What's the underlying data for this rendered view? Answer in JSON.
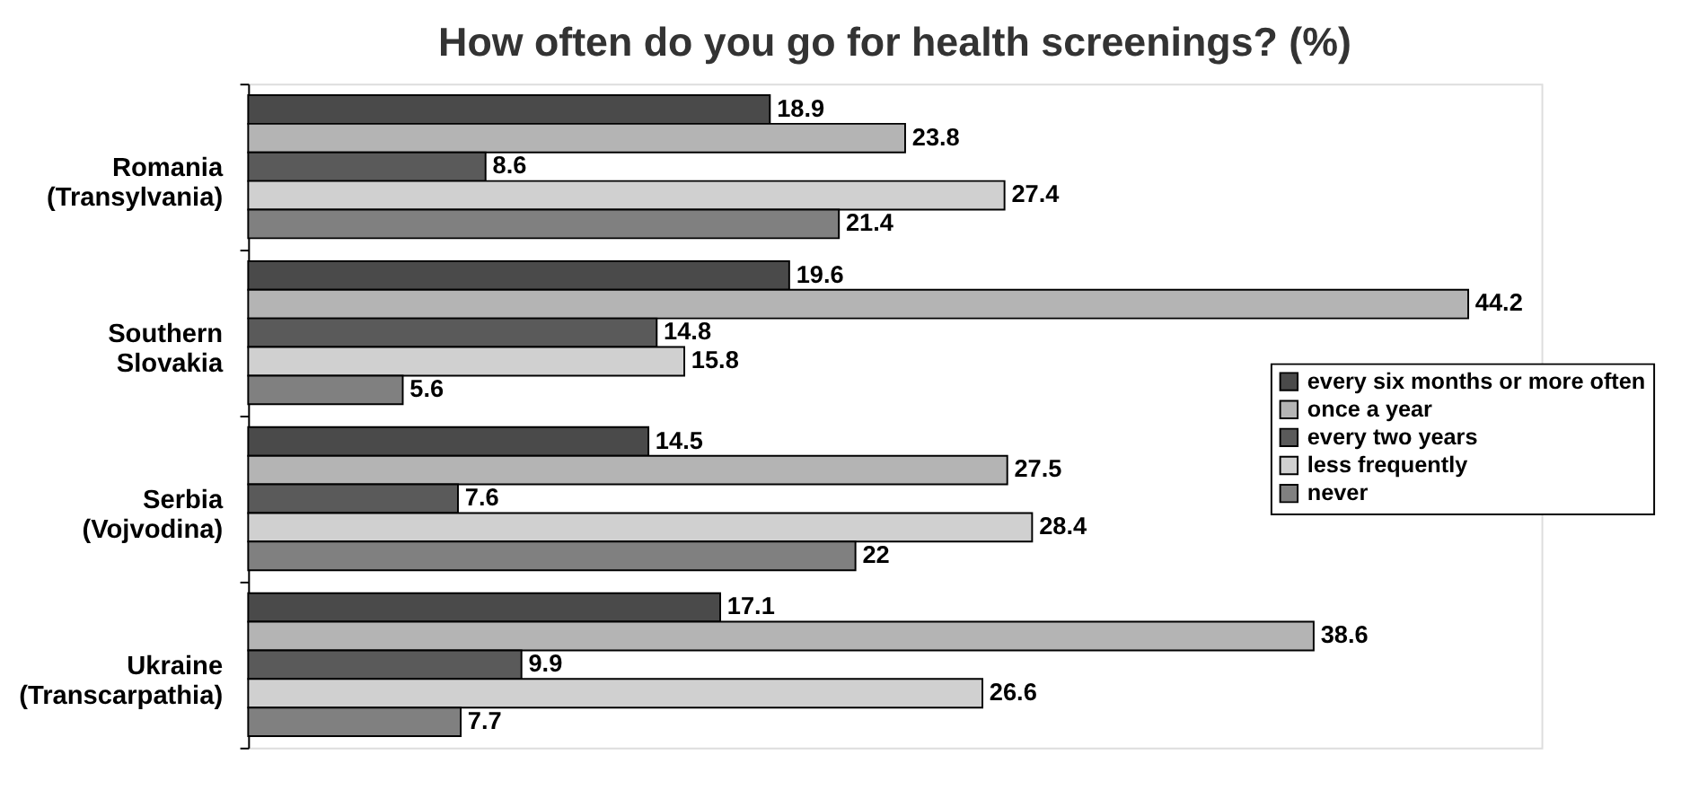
{
  "chart_data": {
    "type": "bar",
    "orientation": "horizontal",
    "title": "How often do you go for health screenings? (%)",
    "categories": [
      "Romania\n(Transylvania)",
      "Southern\nSlovakia",
      "Serbia\n(Vojvodina)",
      "Ukraine\n(Transcarpathia)"
    ],
    "series": [
      {
        "name": "every six months or more often",
        "color": "#4a4a4a",
        "values": [
          18.9,
          19.6,
          14.5,
          17.1
        ]
      },
      {
        "name": "once a year",
        "color": "#b4b4b4",
        "values": [
          23.8,
          44.2,
          27.5,
          38.6
        ]
      },
      {
        "name": "every two years",
        "color": "#5a5a5a",
        "values": [
          8.6,
          14.8,
          7.6,
          9.9
        ]
      },
      {
        "name": "less frequently",
        "color": "#d0d0d0",
        "values": [
          27.4,
          15.8,
          28.4,
          26.6
        ]
      },
      {
        "name": "never",
        "color": "#808080",
        "values": [
          21.4,
          5.6,
          22,
          7.7
        ]
      }
    ],
    "data_labels": true,
    "legend": "right",
    "grid": false
  }
}
